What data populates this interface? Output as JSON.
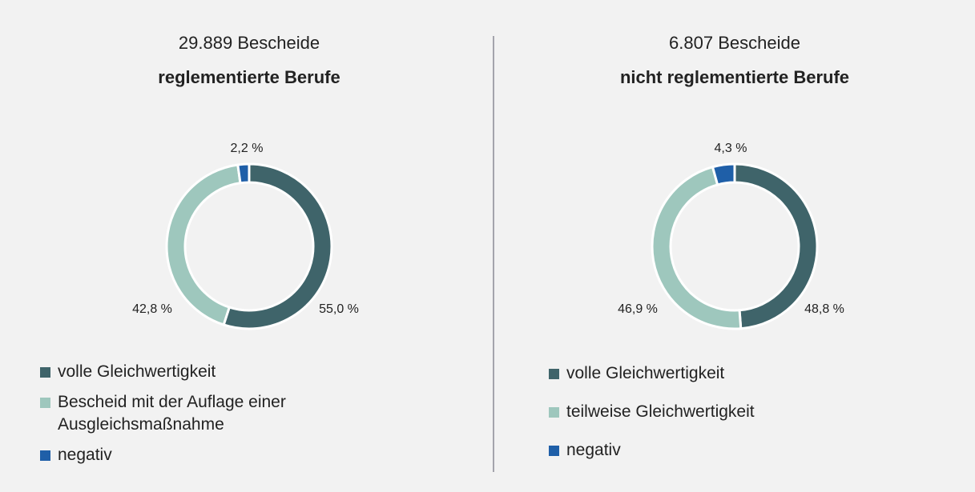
{
  "chart_data": [
    {
      "type": "pie",
      "title": "29.889 Bescheide",
      "subtitle": "reglementierte Berufe",
      "categories": [
        "volle Gleichwertigkeit",
        "Bescheid mit der Auflage einer Ausgleichsmaßnahme",
        "negativ"
      ],
      "values": [
        55.0,
        42.8,
        2.2
      ],
      "value_labels": [
        "55,0 %",
        "42,8 %",
        "2,2 %"
      ],
      "colors": [
        "#3f646a",
        "#9ec7bd",
        "#1f5fa8"
      ]
    },
    {
      "type": "pie",
      "title": "6.807 Bescheide",
      "subtitle": "nicht reglementierte Berufe",
      "categories": [
        "volle Gleichwertigkeit",
        "teilweise Gleichwertigkeit",
        "negativ"
      ],
      "values": [
        48.8,
        46.9,
        4.3
      ],
      "value_labels": [
        "48,8 %",
        "46,9 %",
        "4,3 %"
      ],
      "colors": [
        "#3f646a",
        "#9ec7bd",
        "#1f5fa8"
      ]
    }
  ]
}
